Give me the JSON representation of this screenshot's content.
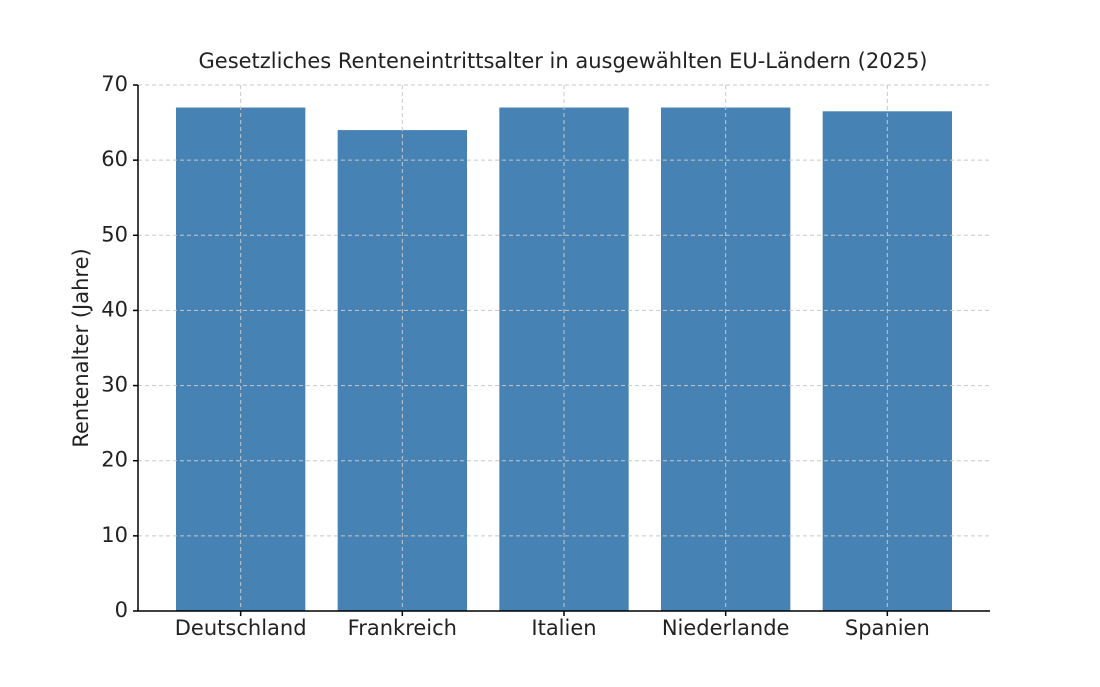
{
  "chart_data": {
    "type": "bar",
    "title": "Gesetzliches Renteneintrittsalter in ausgewählten EU-Ländern (2025)",
    "y_label": "Rentenalter (Jahre)",
    "categories": [
      "Deutschland",
      "Frankreich",
      "Italien",
      "Niederlande",
      "Spanien"
    ],
    "values": [
      67,
      64,
      67,
      67,
      66.5
    ],
    "color": "#4682b4",
    "ylim": [
      0,
      70
    ],
    "yticks": [
      0,
      10,
      20,
      30,
      40,
      50,
      60,
      70
    ],
    "grid": true
  }
}
